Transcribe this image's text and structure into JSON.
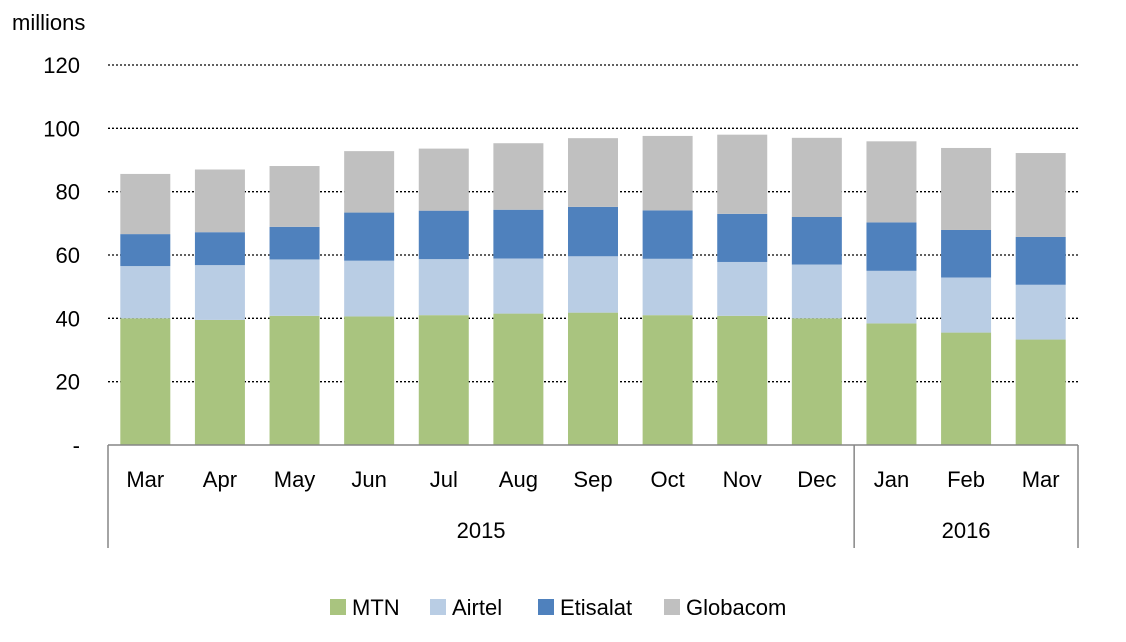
{
  "chart_data": {
    "type": "bar",
    "stacked": true,
    "unit_label": "millions",
    "categories": [
      "Mar",
      "Apr",
      "May",
      "Jun",
      "Jul",
      "Aug",
      "Sep",
      "Oct",
      "Nov",
      "Dec",
      "Jan",
      "Feb",
      "Mar"
    ],
    "groups": [
      {
        "label": "2015",
        "count": 10
      },
      {
        "label": "2016",
        "count": 3
      }
    ],
    "yticks": [
      {
        "value": 0,
        "label": "-"
      },
      {
        "value": 20,
        "label": "20"
      },
      {
        "value": 40,
        "label": "40"
      },
      {
        "value": 60,
        "label": "60"
      },
      {
        "value": 80,
        "label": "80"
      },
      {
        "value": 100,
        "label": "100"
      },
      {
        "value": 120,
        "label": "120"
      }
    ],
    "ylim": [
      0,
      120
    ],
    "grid": "horizontal dotted",
    "legend_position": "bottom",
    "series": [
      {
        "name": "MTN",
        "color": "#a9c47f",
        "values": [
          40.0,
          39.5,
          40.8,
          40.6,
          41.0,
          41.5,
          41.8,
          41.0,
          40.8,
          40.0,
          38.4,
          35.5,
          33.3
        ]
      },
      {
        "name": "Airtel",
        "color": "#b9cde4",
        "values": [
          16.5,
          17.3,
          17.8,
          17.6,
          17.7,
          17.4,
          17.8,
          17.8,
          17.0,
          17.0,
          16.6,
          17.4,
          17.3
        ]
      },
      {
        "name": "Etisalat",
        "color": "#4f81bd",
        "values": [
          10.1,
          10.4,
          10.3,
          15.2,
          15.3,
          15.4,
          15.6,
          15.3,
          15.2,
          15.0,
          15.3,
          15.0,
          15.1
        ]
      },
      {
        "name": "Globacom",
        "color": "#c0c0c0",
        "values": [
          19.0,
          19.8,
          19.2,
          19.4,
          19.6,
          21.0,
          21.7,
          23.5,
          25.0,
          25.0,
          25.6,
          25.9,
          26.5
        ]
      }
    ]
  }
}
